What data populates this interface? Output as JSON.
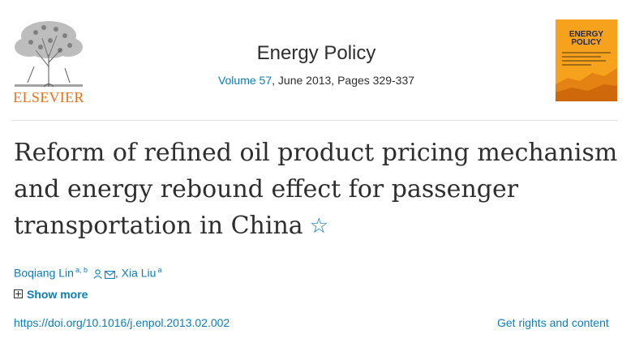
{
  "publisher": {
    "name": "ELSEVIER",
    "brand_color": "#e9711c"
  },
  "journal": {
    "title": "Energy Policy",
    "volume_link": "Volume 57",
    "details": ", June 2013, Pages 329-337",
    "cover_title": "ENERGY POLICY"
  },
  "article": {
    "title": "Reform of refined oil product pricing mechanism and energy rebound effect for passenger transportation in China",
    "star_icon": "star-icon"
  },
  "authors": [
    {
      "name": "Boqiang Lin",
      "affiliation": "a, b",
      "icons": [
        "person-icon",
        "email-icon"
      ]
    },
    {
      "name": "Xia Liu",
      "affiliation": "a"
    }
  ],
  "author_separator": ", ",
  "show_more": "Show more",
  "doi": "https://doi.org/10.1016/j.enpol.2013.02.002",
  "rights": "Get rights and content",
  "colors": {
    "link": "#0c7dbb",
    "text": "#2e2e2e",
    "cover": "#f6a21c"
  }
}
